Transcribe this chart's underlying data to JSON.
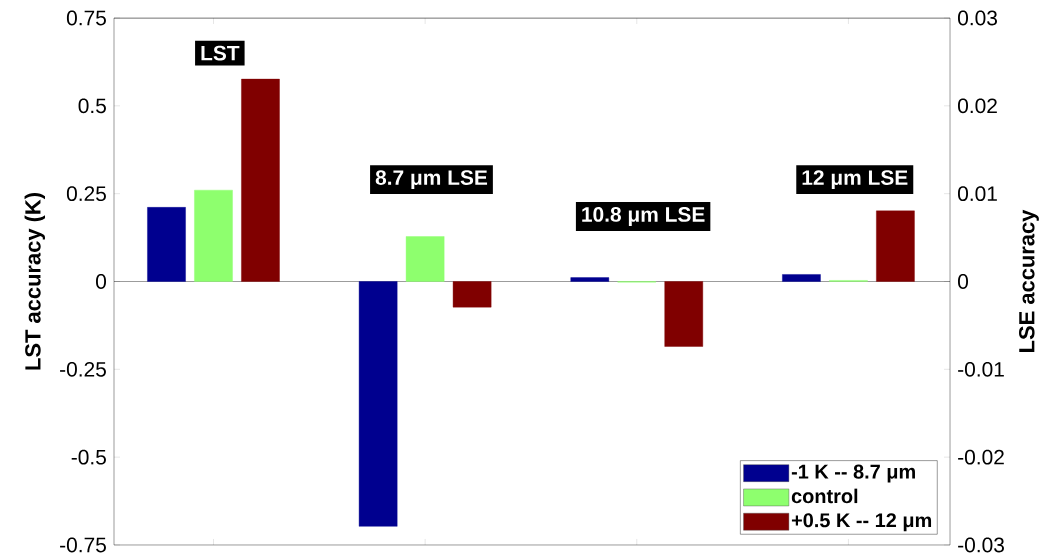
{
  "chart_data": {
    "type": "bar",
    "categories": [
      null,
      null,
      null,
      null
    ],
    "ylabel": "LST accuracy (K)",
    "y2label": "LSE accuracy",
    "ylim": [
      -0.75,
      0.75
    ],
    "yticks": [
      -0.75,
      -0.5,
      -0.25,
      0,
      0.25,
      0.5,
      0.75
    ],
    "y2lim": [
      -0.03,
      0.03
    ],
    "y2ticks": [
      -0.03,
      -0.02,
      -0.01,
      0,
      0.01,
      0.02,
      0.03
    ],
    "series": [
      {
        "name": "-1 K -- 8.7 μm",
        "color": "#00008f",
        "values": [
          0.211,
          -0.697,
          0.011,
          0.02
        ]
      },
      {
        "name": "control",
        "color": "#8eff6e",
        "values": [
          0.26,
          0.128,
          -0.002,
          0.003
        ]
      },
      {
        "name": "+0.5 K -- 12 μm",
        "color": "#800000",
        "values": [
          0.576,
          -0.073,
          -0.185,
          0.201
        ]
      }
    ],
    "annotations": [
      "LST",
      "8.7 μm LSE",
      "10.8 μm LSE",
      "12 μm LSE"
    ],
    "ref_lines": [
      {
        "axis": "y",
        "value": 0,
        "color": "#000000"
      }
    ],
    "legend": "bottom right"
  }
}
